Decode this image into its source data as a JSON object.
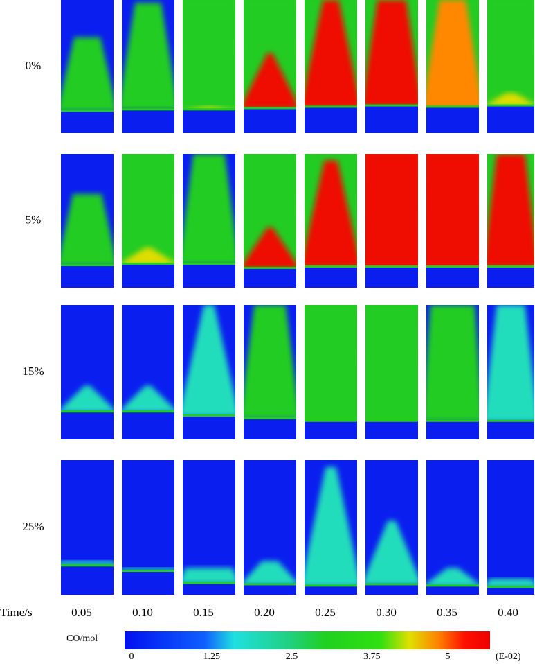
{
  "rows": [
    "0%",
    "5%",
    "15%",
    "25%"
  ],
  "time_label": "Time/s",
  "times": [
    "0.05",
    "0.10",
    "0.15",
    "0.20",
    "0.25",
    "0.30",
    "0.35",
    "0.40"
  ],
  "colorbar": {
    "label": "CO/mol",
    "ticks": [
      "0",
      "1.25",
      "2.5",
      "3.75",
      "5"
    ],
    "unit": "(E-02)"
  }
}
